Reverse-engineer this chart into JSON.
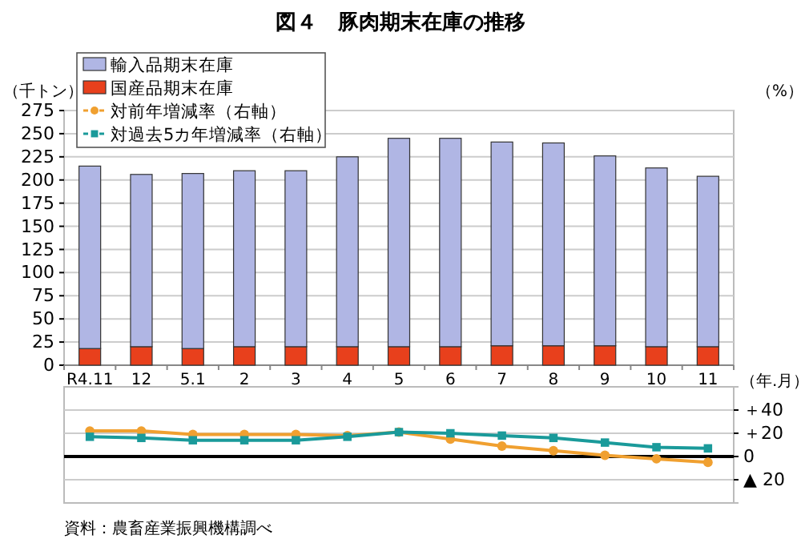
{
  "chart_data": [
    {
      "type": "bar",
      "title": "図４　豚肉期末在庫の推移",
      "ylabel": "（千トン）",
      "xlabel": "（年.月）",
      "stacked": true,
      "legend": "top left",
      "grid": "y",
      "categories": [
        "R4.11",
        "12",
        "5.1",
        "2",
        "3",
        "4",
        "5",
        "6",
        "7",
        "8",
        "9",
        "10",
        "11"
      ],
      "ylim": [
        0,
        275
      ],
      "yticks": [
        0,
        25,
        50,
        75,
        100,
        125,
        150,
        175,
        200,
        225,
        250,
        275
      ],
      "annotations": [
        "（%）"
      ],
      "series": [
        {
          "name": "国産品期末在庫",
          "color": "#e8401c",
          "values": [
            18,
            20,
            18,
            20,
            20,
            20,
            20,
            20,
            21,
            21,
            21,
            20,
            20
          ]
        },
        {
          "name": "輸入品期末在庫",
          "color": "#b0b6e4",
          "values": [
            197,
            186,
            189,
            190,
            190,
            205,
            225,
            225,
            220,
            219,
            205,
            193,
            184
          ]
        }
      ]
    },
    {
      "type": "line",
      "legend": "top left",
      "grid": "y",
      "tick_labels": "y",
      "categories": [
        null,
        null,
        null,
        null,
        null,
        null,
        null,
        null,
        null,
        null,
        null,
        null,
        null
      ],
      "ylim": [
        -40,
        60
      ],
      "yticks": [
        {
          "value": 40,
          "label": "＋40"
        },
        {
          "value": 20,
          "label": "＋20"
        },
        0,
        {
          "value": -20,
          "label": "▲ 20"
        }
      ],
      "annotations": [
        "資料：農畜産業振興機構調べ"
      ],
      "series": [
        {
          "name": "対前年増減率（右軸）",
          "color": "#f0a030",
          "marker": "circle",
          "values": [
            22,
            22,
            19,
            19,
            19,
            18,
            21,
            15,
            9,
            5,
            1,
            -2,
            -5
          ]
        },
        {
          "name": "対過去5カ年増減率（右軸）",
          "color": "#1a9a9a",
          "marker": "square",
          "values": [
            17,
            16,
            14,
            14,
            14,
            17,
            21,
            20,
            18,
            16,
            12,
            8,
            7
          ]
        }
      ]
    }
  ]
}
